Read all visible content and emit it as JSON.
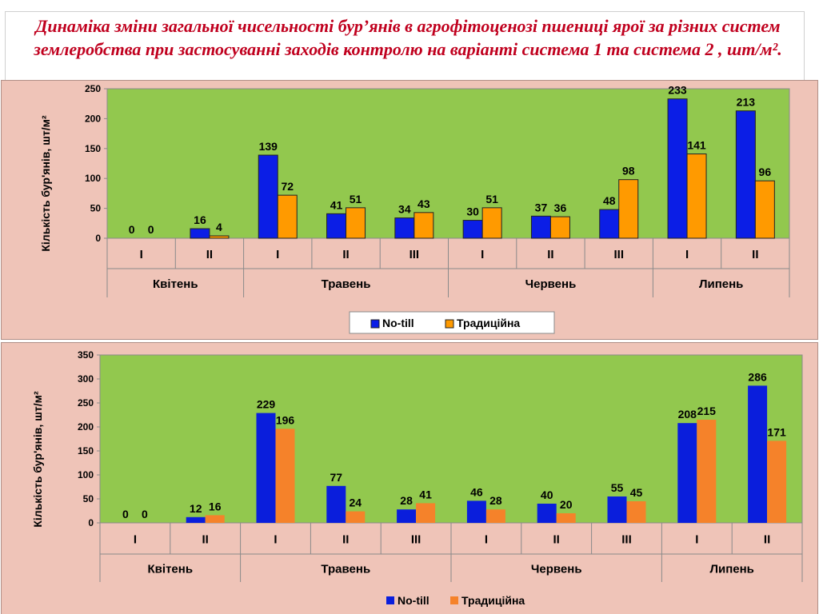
{
  "slide": {
    "title": "Динаміка зміни загальної чисельності бур’янів в агрофітоценозі пшениці ярої за різних систем землеробства при застосуванні заходів контролю на варіанті система 1 та система 2 , шт/м².",
    "title_color": "#c0001e",
    "panel_color": "#efc4b8"
  },
  "chart_data": [
    {
      "type": "bar",
      "ylabel": "Кількість бур'янів, шт/м²",
      "ylim": [
        0,
        250
      ],
      "yticks": [
        "0",
        "50",
        "100",
        "150",
        "200",
        "250"
      ],
      "plot_color": "#92c84e",
      "categories": [
        "I",
        "II",
        "I",
        "II",
        "III",
        "I",
        "II",
        "III",
        "I",
        "II"
      ],
      "groups": [
        {
          "label": "Квітень",
          "span": 2
        },
        {
          "label": "Травень",
          "span": 3
        },
        {
          "label": "Червень",
          "span": 3
        },
        {
          "label": "Липень",
          "span": 2
        }
      ],
      "series": [
        {
          "name": "No-till",
          "color": "#0b1ee6",
          "values": [
            0,
            16,
            139,
            41,
            34,
            30,
            37,
            48,
            233,
            213
          ]
        },
        {
          "name": "Традиційна",
          "color": "#ff9a00",
          "values": [
            0,
            4,
            72,
            51,
            43,
            51,
            36,
            98,
            141,
            96
          ]
        }
      ],
      "legend": "bottom",
      "grid": false
    },
    {
      "type": "bar",
      "ylabel": "Кількість бур'янів, шт/м²",
      "ylim": [
        0,
        350
      ],
      "yticks": [
        "0",
        "50",
        "100",
        "150",
        "200",
        "250",
        "300",
        "350"
      ],
      "plot_color": "#92c84e",
      "categories": [
        "I",
        "II",
        "I",
        "II",
        "III",
        "I",
        "II",
        "III",
        "I",
        "II"
      ],
      "groups": [
        {
          "label": "Квітень",
          "span": 2
        },
        {
          "label": "Травень",
          "span": 3
        },
        {
          "label": "Червень",
          "span": 3
        },
        {
          "label": "Липень",
          "span": 2
        }
      ],
      "series": [
        {
          "name": "No-till",
          "color": "#0a1edc",
          "values": [
            0,
            12,
            229,
            77,
            28,
            46,
            40,
            55,
            208,
            286
          ]
        },
        {
          "name": "Традиційна",
          "color": "#f5822a",
          "values": [
            0,
            16,
            196,
            24,
            41,
            28,
            20,
            45,
            215,
            171
          ]
        }
      ],
      "legend": "bottom",
      "grid": false
    }
  ]
}
